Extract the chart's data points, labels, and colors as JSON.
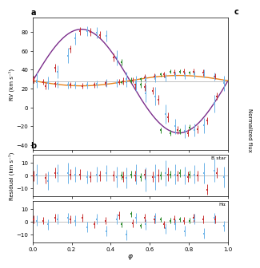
{
  "title_a": "a",
  "title_b": "b",
  "title_c": "c",
  "ylabel_a": "RV (km s⁻¹)",
  "ylabel_b": "Residual (km s⁻¹)",
  "xlabel": "φ",
  "ylim_a": [
    -45,
    95
  ],
  "ylim_b1": [
    -16,
    16
  ],
  "ylim_b2": [
    -16,
    16
  ],
  "xlim": [
    0.0,
    1.0
  ],
  "yticks_a": [
    -40,
    -20,
    0,
    20,
    40,
    60,
    80
  ],
  "yticks_b": [
    -10,
    0,
    10
  ],
  "label_Bstar": "B star",
  "label_Ha": "Hα",
  "bstar_gamma": 28.0,
  "bstar_K": 55.0,
  "comp_gamma": 28.5,
  "comp_K": 5.5,
  "color_purple": "#7B2D8B",
  "color_orange": "#E8821A",
  "color_blue": "#6EB4E8",
  "color_red": "#C83232",
  "color_green": "#2E8B2E",
  "color_zero_line": "#AAAAAA",
  "background_color": "#FFFFFF",
  "bstar_phi_blue": [
    0.02,
    0.08,
    0.13,
    0.18,
    0.22,
    0.28,
    0.33,
    0.38,
    0.43,
    0.48,
    0.53,
    0.58,
    0.63,
    0.68,
    0.73,
    0.78,
    0.83,
    0.88,
    0.93,
    0.98
  ],
  "bstar_rv_blue": [
    29,
    26,
    38,
    55,
    73,
    81,
    79,
    76,
    53,
    30,
    26,
    15,
    12,
    -7,
    -20,
    -25,
    -24,
    -19,
    4,
    26
  ],
  "bstar_err_blue": [
    8,
    7,
    7,
    8,
    6,
    5,
    6,
    6,
    8,
    8,
    8,
    9,
    10,
    10,
    8,
    7,
    7,
    8,
    9,
    8
  ],
  "bstar_phi_red": [
    0.005,
    0.065,
    0.115,
    0.195,
    0.245,
    0.295,
    0.345,
    0.415,
    0.465,
    0.525,
    0.575,
    0.615,
    0.645,
    0.695,
    0.745,
    0.795,
    0.845,
    0.895,
    0.945
  ],
  "bstar_rv_red": [
    30,
    23,
    42,
    62,
    81,
    80,
    77,
    53,
    28,
    24,
    22,
    18,
    8,
    -10,
    -24,
    -27,
    -23,
    -14,
    12
  ],
  "bstar_err_red": [
    4,
    4,
    4,
    4,
    4,
    4,
    4,
    4,
    4,
    4,
    4,
    4,
    5,
    5,
    4,
    4,
    4,
    4,
    4
  ],
  "bstar_phi_green": [
    0.455,
    0.505,
    0.555,
    0.655,
    0.705,
    0.755,
    0.805
  ],
  "bstar_rv_green": [
    48,
    29,
    24,
    -24,
    -27,
    -25,
    -21
  ],
  "bstar_err_green": [
    3,
    3,
    3,
    3,
    3,
    3,
    3
  ],
  "comp_phi_blue": [
    0.02,
    0.08,
    0.13,
    0.18,
    0.22,
    0.28,
    0.33,
    0.38,
    0.43,
    0.48,
    0.53,
    0.58,
    0.63,
    0.68,
    0.73,
    0.78,
    0.83,
    0.88,
    0.93,
    0.98
  ],
  "comp_rv_blue": [
    27,
    26,
    25,
    24,
    24,
    24,
    25,
    26,
    26,
    27,
    28,
    30,
    31,
    32,
    34,
    34,
    35,
    36,
    33,
    29
  ],
  "comp_err_blue": [
    4,
    4,
    4,
    4,
    4,
    4,
    4,
    4,
    4,
    4,
    4,
    4,
    4,
    4,
    4,
    4,
    4,
    4,
    4,
    4
  ],
  "comp_phi_red": [
    0.005,
    0.055,
    0.115,
    0.195,
    0.255,
    0.315,
    0.375,
    0.445,
    0.515,
    0.575,
    0.625,
    0.675,
    0.725,
    0.775,
    0.825,
    0.875,
    0.935
  ],
  "comp_rv_red": [
    29,
    27,
    25,
    24,
    23,
    24,
    26,
    27,
    29,
    32,
    33,
    35,
    37,
    38,
    38,
    37,
    33
  ],
  "comp_err_red": [
    3,
    3,
    3,
    3,
    3,
    3,
    3,
    3,
    3,
    3,
    3,
    3,
    3,
    3,
    3,
    3,
    3
  ],
  "comp_phi_green": [
    0.455,
    0.505,
    0.555,
    0.655,
    0.705,
    0.755,
    0.805
  ],
  "comp_rv_green": [
    27,
    28,
    30,
    35,
    38,
    38,
    37
  ],
  "comp_err_green": [
    2,
    2,
    2,
    2,
    2,
    2,
    2
  ],
  "res_b_phi_blue": [
    0.02,
    0.08,
    0.13,
    0.18,
    0.22,
    0.28,
    0.33,
    0.38,
    0.43,
    0.48,
    0.53,
    0.58,
    0.63,
    0.68,
    0.73,
    0.78,
    0.83,
    0.88,
    0.93,
    0.98
  ],
  "res_b_rv_blue": [
    1,
    -4,
    2,
    2,
    1,
    -1,
    1,
    2,
    -1,
    -2,
    1,
    -3,
    -1,
    2,
    1,
    0,
    1,
    2,
    4,
    -1
  ],
  "res_b_err_blue": [
    8,
    7,
    7,
    8,
    6,
    5,
    6,
    6,
    8,
    8,
    8,
    9,
    10,
    10,
    8,
    7,
    7,
    8,
    9,
    8
  ],
  "res_b_phi_red": [
    0.005,
    0.065,
    0.115,
    0.195,
    0.245,
    0.295,
    0.345,
    0.415,
    0.465,
    0.525,
    0.575,
    0.615,
    0.645,
    0.695,
    0.745,
    0.795,
    0.845,
    0.895,
    0.945
  ],
  "res_b_rv_red": [
    0,
    -2,
    2,
    1,
    1,
    -1,
    0,
    0,
    -1,
    0,
    1,
    -1,
    0,
    1,
    0,
    -1,
    0,
    -11,
    2
  ],
  "res_b_err_red": [
    4,
    4,
    4,
    4,
    4,
    4,
    4,
    4,
    4,
    4,
    4,
    4,
    5,
    5,
    4,
    4,
    4,
    4,
    4
  ],
  "res_b_phi_green": [
    0.455,
    0.505,
    0.555,
    0.655,
    0.705,
    0.755,
    0.805
  ],
  "res_b_rv_green": [
    0,
    1,
    -1,
    0,
    1,
    2,
    1
  ],
  "res_b_err_green": [
    3,
    3,
    3,
    3,
    3,
    3,
    3
  ],
  "res_ha_phi_blue": [
    0.02,
    0.08,
    0.13,
    0.18,
    0.22,
    0.28,
    0.33,
    0.38,
    0.43,
    0.48,
    0.53,
    0.58,
    0.63,
    0.68,
    0.73,
    0.78,
    0.83,
    0.88,
    0.93,
    0.98
  ],
  "res_ha_rv_blue": [
    1,
    -2,
    2,
    3,
    1,
    -4,
    2,
    -7,
    2,
    -10,
    3,
    -2,
    3,
    -5,
    -2,
    -7,
    2,
    -9,
    3,
    -3
  ],
  "res_ha_err_blue": [
    4,
    4,
    4,
    4,
    4,
    4,
    4,
    4,
    4,
    4,
    4,
    4,
    4,
    4,
    4,
    4,
    4,
    4,
    4,
    4
  ],
  "res_ha_phi_red": [
    0.005,
    0.055,
    0.115,
    0.195,
    0.255,
    0.315,
    0.375,
    0.445,
    0.515,
    0.575,
    0.625,
    0.675,
    0.725,
    0.775,
    0.825,
    0.875,
    0.935
  ],
  "res_ha_rv_red": [
    2,
    1,
    3,
    2,
    3,
    -2,
    1,
    5,
    -1,
    3,
    2,
    -2,
    2,
    1,
    3,
    2,
    2
  ],
  "res_ha_err_red": [
    3,
    3,
    3,
    3,
    3,
    3,
    3,
    3,
    3,
    3,
    3,
    3,
    3,
    3,
    3,
    3,
    3
  ],
  "res_ha_phi_green": [
    0.455,
    0.505,
    0.555,
    0.655,
    0.705,
    0.755,
    0.805
  ],
  "res_ha_rv_green": [
    -2,
    6,
    -3,
    2,
    1,
    2,
    1
  ],
  "res_ha_err_green": [
    2,
    2,
    2,
    2,
    2,
    2,
    2
  ]
}
